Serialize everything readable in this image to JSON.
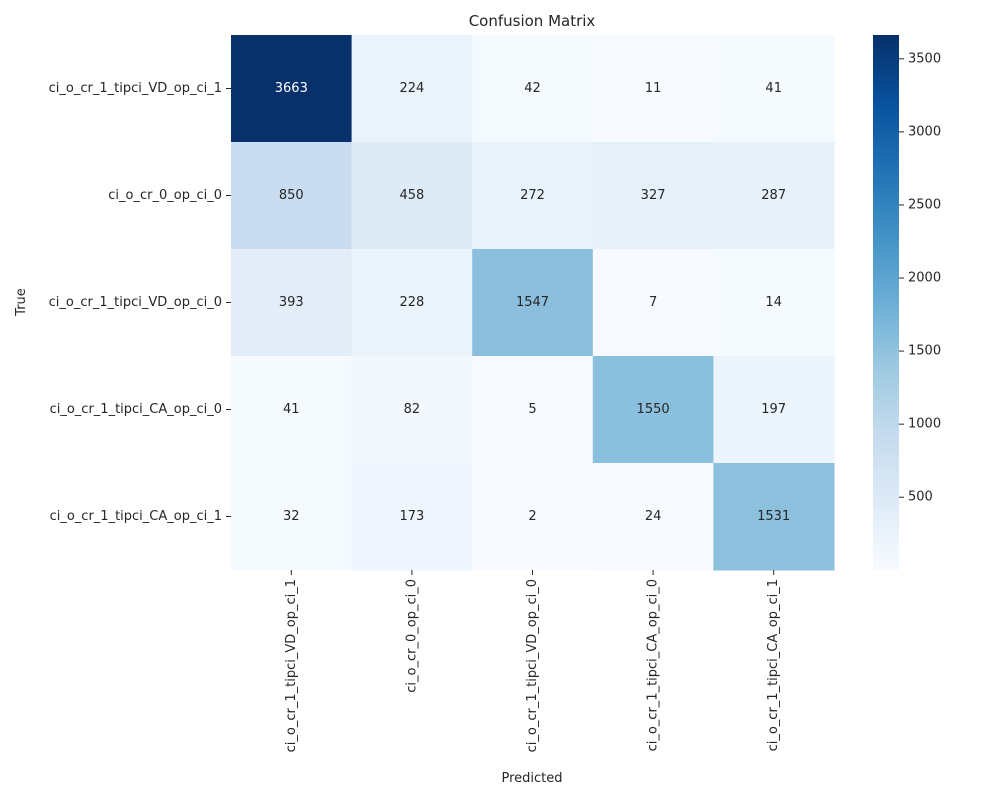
{
  "chart_data": {
    "type": "heatmap",
    "title": "Confusion Matrix",
    "xlabel": "Predicted",
    "ylabel": "True",
    "row_labels": [
      "ci_o_cr_1_tipci_VD_op_ci_1",
      "ci_o_cr_0_op_ci_0",
      "ci_o_cr_1_tipci_VD_op_ci_0",
      "ci_o_cr_1_tipci_CA_op_ci_0",
      "ci_o_cr_1_tipci_CA_op_ci_1"
    ],
    "col_labels": [
      "ci_o_cr_1_tipci_VD_op_ci_1",
      "ci_o_cr_0_op_ci_0",
      "ci_o_cr_1_tipci_VD_op_ci_0",
      "ci_o_cr_1_tipci_CA_op_ci_0",
      "ci_o_cr_1_tipci_CA_op_ci_1"
    ],
    "values": [
      [
        3663,
        224,
        42,
        11,
        41
      ],
      [
        850,
        458,
        272,
        327,
        287
      ],
      [
        393,
        228,
        1547,
        7,
        14
      ],
      [
        41,
        82,
        5,
        1550,
        197
      ],
      [
        32,
        173,
        2,
        24,
        1531
      ]
    ],
    "colormap": "Blues",
    "color_range": [
      2,
      3663
    ],
    "colorbar_ticks": [
      500,
      1000,
      1500,
      2000,
      2500,
      3000,
      3500
    ],
    "colorbar_ticks_text": [
      "500",
      "1000",
      "1500",
      "2000",
      "2500",
      "3000",
      "3500"
    ]
  }
}
